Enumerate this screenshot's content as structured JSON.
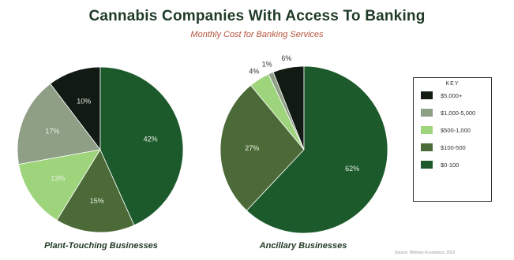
{
  "title": "Cannabis Companies With Access To Banking",
  "subtitle": "Monthly Cost for Banking Services",
  "legend_title": "KEY",
  "colors": {
    "c1": "#111a13",
    "c2": "#8f9f86",
    "c3": "#9ed47c",
    "c4": "#4c6a37",
    "c5": "#1c5a2c"
  },
  "chart_data": [
    {
      "type": "pie",
      "title": "Plant-Touching Businesses",
      "legend_placement": "right",
      "slices": [
        {
          "label": "$5,000+",
          "value": 10,
          "display": "10%",
          "color": "#111a13"
        },
        {
          "label": "$1,000-5,000",
          "value": 17,
          "display": "17%",
          "color": "#8f9f86"
        },
        {
          "label": "$500-1,000",
          "value": 13,
          "display": "13%",
          "color": "#9ed47c"
        },
        {
          "label": "$100-500",
          "value": 15,
          "display": "15%",
          "color": "#4c6a37"
        },
        {
          "label": "$0-100",
          "value": 42,
          "display": "42%",
          "color": "#1c5a2c"
        }
      ]
    },
    {
      "type": "pie",
      "title": "Ancillary Businesses",
      "legend_placement": "right",
      "slices": [
        {
          "label": "$5,000+",
          "value": 6,
          "display": "6%",
          "color": "#111a13"
        },
        {
          "label": "$1,000-5,000",
          "value": 1,
          "display": "1%",
          "color": "#8f9f86"
        },
        {
          "label": "$500-1,000",
          "value": 4,
          "display": "4%",
          "color": "#9ed47c"
        },
        {
          "label": "$100-500",
          "value": 27,
          "display": "27%",
          "color": "#4c6a37"
        },
        {
          "label": "$0-100",
          "value": 62,
          "display": "62%",
          "color": "#1c5a2c"
        }
      ]
    }
  ],
  "legend": [
    {
      "label": "$5,000+",
      "color": "#111a13"
    },
    {
      "label": "$1,000-5,000",
      "color": "#8f9f86"
    },
    {
      "label": "$500-1,000",
      "color": "#9ed47c"
    },
    {
      "label": "$100-500",
      "color": "#4c6a37"
    },
    {
      "label": "$0-100",
      "color": "#1c5a2c"
    }
  ],
  "source": "Source: Whitney Economics, 2022"
}
